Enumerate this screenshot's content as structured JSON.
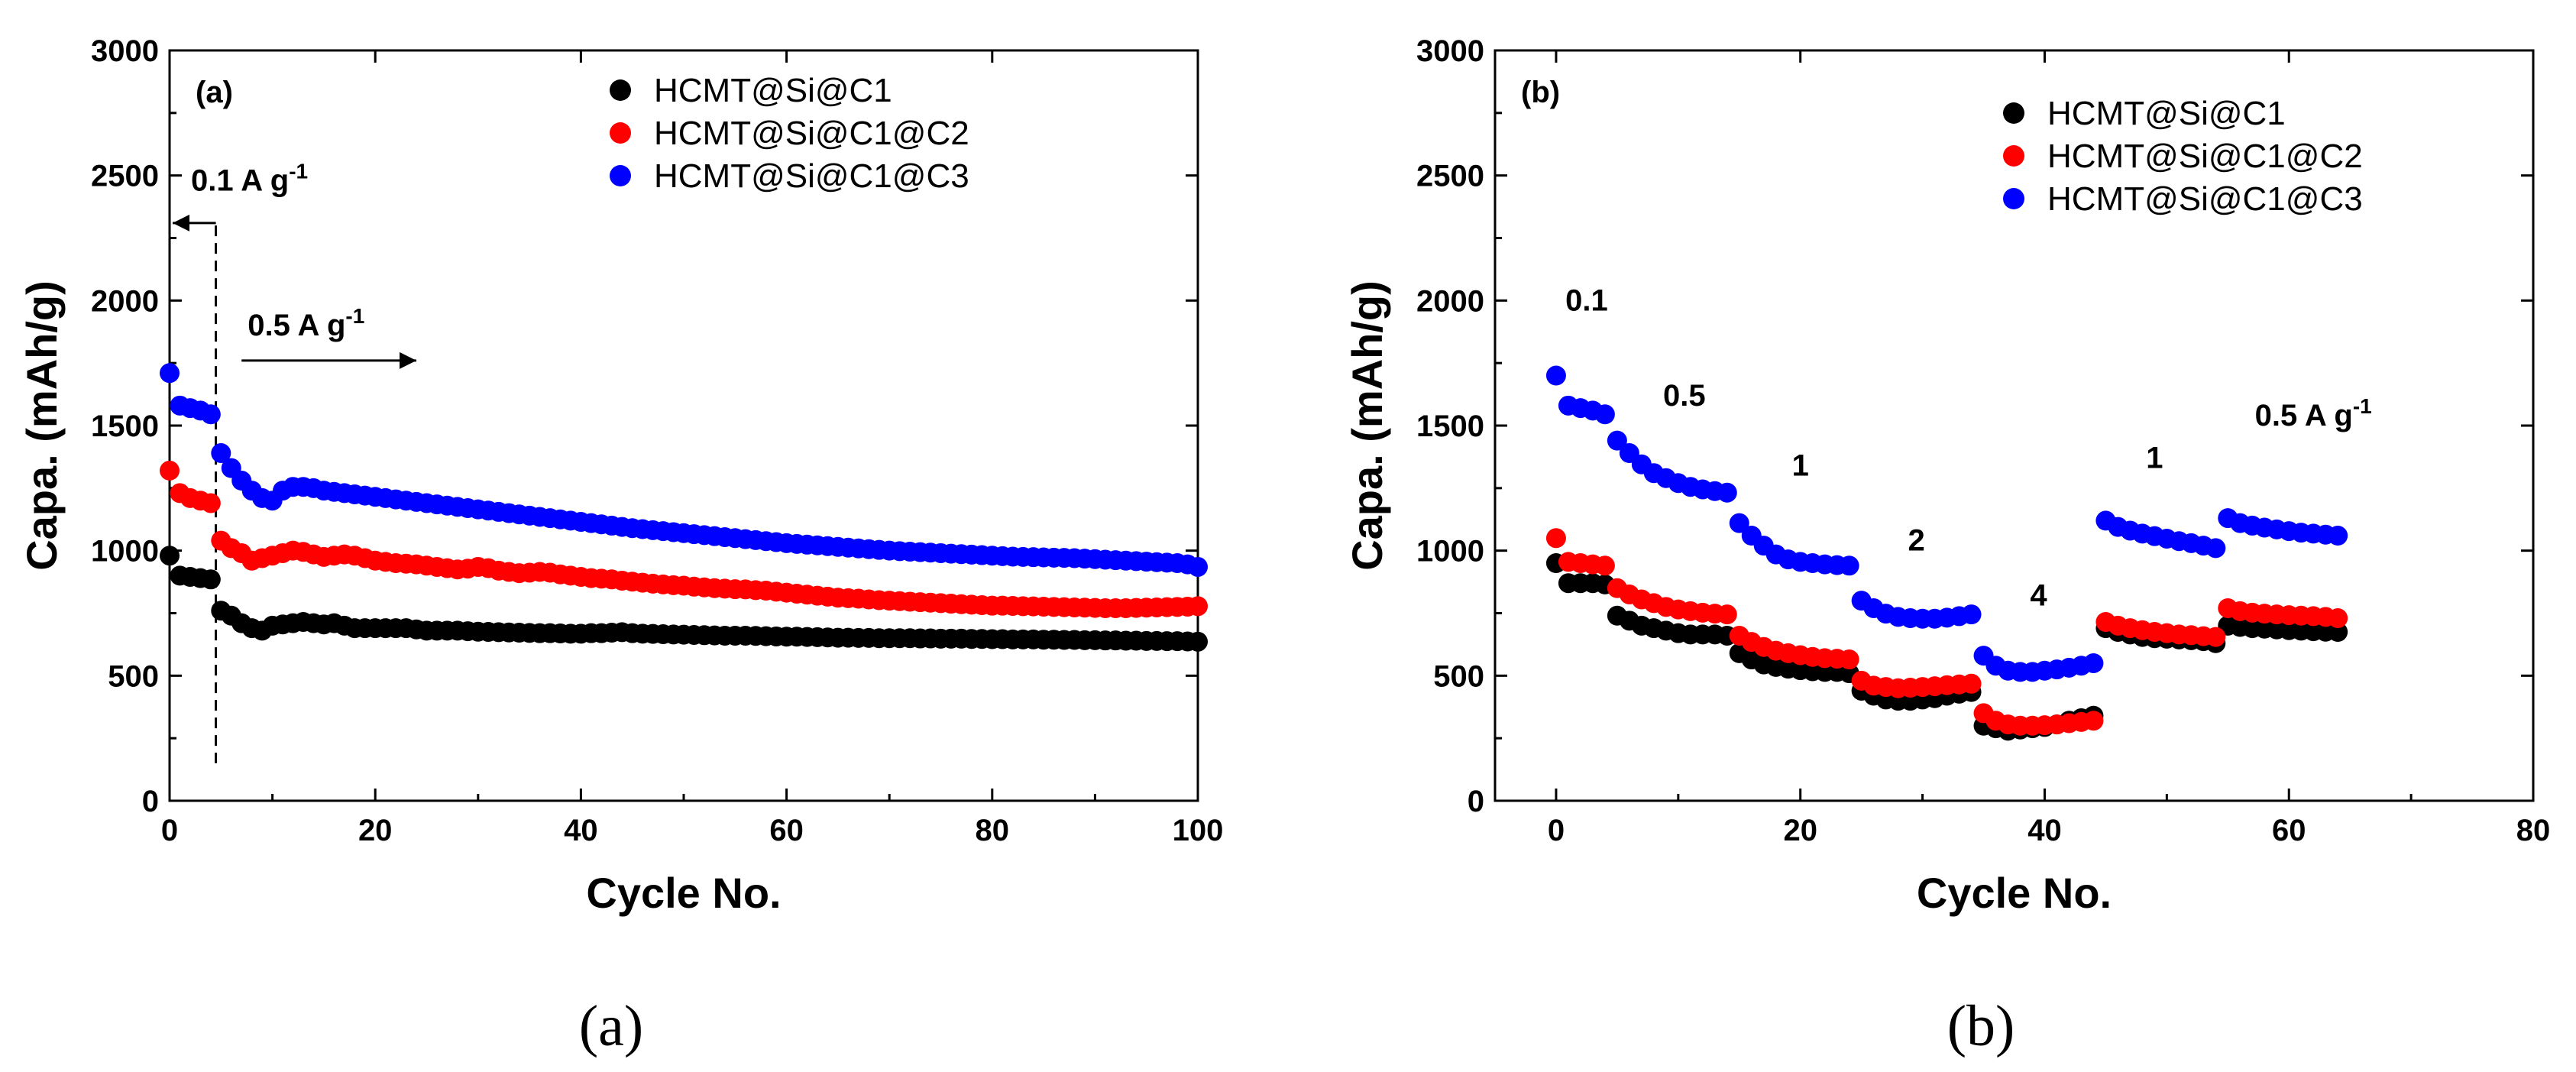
{
  "chart_data": [
    {
      "type": "scatter",
      "panel_label": "(a)",
      "caption": "(a)",
      "xlabel": "Cycle No.",
      "ylabel": "Capa. (mAh/g)",
      "xlim": [
        0,
        100
      ],
      "ylim": [
        0,
        3000
      ],
      "xticks": [
        0,
        20,
        40,
        60,
        80,
        100
      ],
      "yticks": [
        0,
        500,
        1000,
        1500,
        2000,
        2500,
        3000
      ],
      "grid": false,
      "legend_position": "top-right",
      "colors": [
        "#000000",
        "#ff0000",
        "#0000ff"
      ],
      "annotations": [
        {
          "text": "0.1 A g",
          "sup": "-1",
          "arrow": "left"
        },
        {
          "text": "0.5 A g",
          "sup": "-1",
          "arrow": "right"
        }
      ],
      "divider_x": 4.5,
      "series": [
        {
          "name": "HCMT@Si@C1",
          "x": [
            0,
            1,
            2,
            3,
            4,
            5,
            6,
            7,
            8,
            9,
            10,
            11,
            12,
            13,
            14,
            15,
            16,
            17,
            18,
            19,
            20,
            21,
            22,
            23,
            24,
            25,
            26,
            27,
            28,
            29,
            30,
            31,
            32,
            33,
            34,
            35,
            36,
            37,
            38,
            39,
            40,
            41,
            42,
            43,
            44,
            45,
            46,
            47,
            48,
            49,
            50,
            51,
            52,
            53,
            54,
            55,
            56,
            57,
            58,
            59,
            60,
            61,
            62,
            63,
            64,
            65,
            66,
            67,
            68,
            69,
            70,
            71,
            72,
            73,
            74,
            75,
            76,
            77,
            78,
            79,
            80,
            81,
            82,
            83,
            84,
            85,
            86,
            87,
            88,
            89,
            90,
            91,
            92,
            93,
            94,
            95,
            96,
            97,
            98,
            99,
            100
          ],
          "y": [
            980,
            900,
            895,
            890,
            885,
            760,
            740,
            710,
            690,
            680,
            700,
            705,
            710,
            715,
            710,
            705,
            710,
            700,
            690,
            690,
            690,
            690,
            690,
            690,
            685,
            680,
            680,
            680,
            680,
            678,
            676,
            675,
            674,
            673,
            672,
            671,
            670,
            670,
            669,
            668,
            668,
            670,
            670,
            672,
            674,
            670,
            668,
            667,
            666,
            665,
            664,
            663,
            662,
            661,
            660,
            660,
            660,
            659,
            658,
            657,
            656,
            656,
            655,
            654,
            653,
            652,
            652,
            651,
            651,
            650,
            650,
            650,
            650,
            649,
            649,
            648,
            648,
            648,
            647,
            647,
            646,
            646,
            645,
            645,
            645,
            644,
            644,
            643,
            643,
            642,
            642,
            641,
            641,
            640,
            640,
            639,
            639,
            638,
            638,
            637,
            636
          ]
        },
        {
          "name": "HCMT@Si@C1@C2",
          "x": [
            0,
            1,
            2,
            3,
            4,
            5,
            6,
            7,
            8,
            9,
            10,
            11,
            12,
            13,
            14,
            15,
            16,
            17,
            18,
            19,
            20,
            21,
            22,
            23,
            24,
            25,
            26,
            27,
            28,
            29,
            30,
            31,
            32,
            33,
            34,
            35,
            36,
            37,
            38,
            39,
            40,
            41,
            42,
            43,
            44,
            45,
            46,
            47,
            48,
            49,
            50,
            51,
            52,
            53,
            54,
            55,
            56,
            57,
            58,
            59,
            60,
            61,
            62,
            63,
            64,
            65,
            66,
            67,
            68,
            69,
            70,
            71,
            72,
            73,
            74,
            75,
            76,
            77,
            78,
            79,
            80,
            81,
            82,
            83,
            84,
            85,
            86,
            87,
            88,
            89,
            90,
            91,
            92,
            93,
            94,
            95,
            96,
            97,
            98,
            99,
            100
          ],
          "y": [
            1320,
            1230,
            1210,
            1200,
            1190,
            1040,
            1010,
            990,
            960,
            970,
            980,
            990,
            1000,
            995,
            985,
            975,
            980,
            985,
            980,
            970,
            960,
            955,
            950,
            948,
            945,
            940,
            935,
            930,
            925,
            928,
            935,
            930,
            920,
            915,
            910,
            912,
            915,
            912,
            905,
            900,
            895,
            890,
            888,
            885,
            880,
            876,
            872,
            868,
            865,
            862,
            860,
            856,
            853,
            850,
            848,
            846,
            845,
            842,
            840,
            836,
            832,
            828,
            824,
            820,
            816,
            812,
            810,
            808,
            805,
            802,
            800,
            798,
            796,
            794,
            792,
            790,
            788,
            786,
            784,
            782,
            780,
            780,
            779,
            778,
            777,
            776,
            775,
            774,
            773,
            772,
            771,
            770,
            770,
            770,
            771,
            772,
            773,
            774,
            775,
            776,
            778
          ]
        },
        {
          "name": "HCMT@Si@C1@C3",
          "x": [
            0,
            1,
            2,
            3,
            4,
            5,
            6,
            7,
            8,
            9,
            10,
            11,
            12,
            13,
            14,
            15,
            16,
            17,
            18,
            19,
            20,
            21,
            22,
            23,
            24,
            25,
            26,
            27,
            28,
            29,
            30,
            31,
            32,
            33,
            34,
            35,
            36,
            37,
            38,
            39,
            40,
            41,
            42,
            43,
            44,
            45,
            46,
            47,
            48,
            49,
            50,
            51,
            52,
            53,
            54,
            55,
            56,
            57,
            58,
            59,
            60,
            61,
            62,
            63,
            64,
            65,
            66,
            67,
            68,
            69,
            70,
            71,
            72,
            73,
            74,
            75,
            76,
            77,
            78,
            79,
            80,
            81,
            82,
            83,
            84,
            85,
            86,
            87,
            88,
            89,
            90,
            91,
            92,
            93,
            94,
            95,
            96,
            97,
            98,
            99,
            100
          ],
          "y": [
            1710,
            1580,
            1570,
            1560,
            1545,
            1390,
            1330,
            1280,
            1240,
            1210,
            1200,
            1240,
            1255,
            1255,
            1250,
            1240,
            1235,
            1230,
            1225,
            1220,
            1215,
            1210,
            1205,
            1200,
            1195,
            1190,
            1185,
            1180,
            1175,
            1170,
            1165,
            1160,
            1155,
            1150,
            1145,
            1140,
            1135,
            1130,
            1125,
            1120,
            1115,
            1110,
            1105,
            1100,
            1095,
            1090,
            1086,
            1082,
            1078,
            1074,
            1070,
            1066,
            1062,
            1058,
            1054,
            1050,
            1046,
            1042,
            1038,
            1034,
            1030,
            1027,
            1024,
            1021,
            1018,
            1015,
            1012,
            1009,
            1006,
            1003,
            1000,
            998,
            996,
            994,
            992,
            990,
            988,
            986,
            984,
            982,
            980,
            978,
            976,
            975,
            974,
            973,
            972,
            971,
            970,
            968,
            966,
            964,
            962,
            960,
            958,
            956,
            954,
            952,
            950,
            945,
            935
          ]
        }
      ]
    },
    {
      "type": "scatter",
      "panel_label": "(b)",
      "caption": "(b)",
      "xlabel": "Cycle No.",
      "ylabel": "Capa. (mAh/g)",
      "xlim": [
        -5,
        80
      ],
      "ylim": [
        0,
        3000
      ],
      "xticks": [
        0,
        20,
        40,
        60,
        80
      ],
      "yticks": [
        0,
        500,
        1000,
        1500,
        2000,
        2500,
        3000
      ],
      "grid": false,
      "legend_position": "top-right",
      "colors": [
        "#000000",
        "#ff0000",
        "#0000ff"
      ],
      "rate_labels": [
        {
          "text": "0.1",
          "x": 2.5,
          "y": 1960
        },
        {
          "text": "0.5",
          "x": 10.5,
          "y": 1580
        },
        {
          "text": "1",
          "x": 20,
          "y": 1300
        },
        {
          "text": "2",
          "x": 29.5,
          "y": 1000
        },
        {
          "text": "4",
          "x": 39.5,
          "y": 780
        },
        {
          "text": "1",
          "x": 49,
          "y": 1330
        },
        {
          "text": "0.5 A g",
          "sup": "-1",
          "x": 62,
          "y": 1500
        }
      ],
      "series": [
        {
          "name": "HCMT@Si@C1",
          "x": [
            0,
            1,
            2,
            3,
            4,
            5,
            6,
            7,
            8,
            9,
            10,
            11,
            12,
            13,
            14,
            15,
            16,
            17,
            18,
            19,
            20,
            21,
            22,
            23,
            24,
            25,
            26,
            27,
            28,
            29,
            30,
            31,
            32,
            33,
            34,
            35,
            36,
            37,
            38,
            39,
            40,
            41,
            42,
            43,
            44,
            45,
            46,
            47,
            48,
            49,
            50,
            51,
            52,
            53,
            54,
            55,
            56,
            57,
            58,
            59,
            60,
            61,
            62,
            63,
            64
          ],
          "y": [
            950,
            870,
            870,
            870,
            865,
            740,
            720,
            700,
            690,
            680,
            670,
            665,
            665,
            665,
            660,
            590,
            565,
            545,
            535,
            528,
            522,
            518,
            515,
            515,
            510,
            440,
            420,
            405,
            400,
            400,
            405,
            410,
            420,
            428,
            435,
            300,
            290,
            280,
            285,
            290,
            295,
            305,
            320,
            330,
            340,
            690,
            675,
            665,
            655,
            650,
            648,
            645,
            642,
            638,
            630,
            700,
            695,
            690,
            688,
            685,
            682,
            680,
            678,
            676,
            675
          ]
        },
        {
          "name": "HCMT@Si@C1@C2",
          "x": [
            0,
            1,
            2,
            3,
            4,
            5,
            6,
            7,
            8,
            9,
            10,
            11,
            12,
            13,
            14,
            15,
            16,
            17,
            18,
            19,
            20,
            21,
            22,
            23,
            24,
            25,
            26,
            27,
            28,
            29,
            30,
            31,
            32,
            33,
            34,
            35,
            36,
            37,
            38,
            39,
            40,
            41,
            42,
            43,
            44,
            45,
            46,
            47,
            48,
            49,
            50,
            51,
            52,
            53,
            54,
            55,
            56,
            57,
            58,
            59,
            60,
            61,
            62,
            63,
            64
          ],
          "y": [
            1050,
            955,
            950,
            945,
            940,
            850,
            825,
            805,
            790,
            775,
            765,
            758,
            752,
            748,
            745,
            660,
            635,
            615,
            600,
            590,
            582,
            575,
            570,
            568,
            565,
            480,
            460,
            455,
            450,
            452,
            455,
            458,
            462,
            465,
            468,
            350,
            320,
            305,
            300,
            300,
            302,
            305,
            310,
            315,
            320,
            715,
            700,
            690,
            682,
            675,
            670,
            665,
            662,
            658,
            655,
            770,
            758,
            752,
            748,
            745,
            742,
            740,
            738,
            735,
            730
          ]
        },
        {
          "name": "HCMT@Si@C1@C3",
          "x": [
            0,
            1,
            2,
            3,
            4,
            5,
            6,
            7,
            8,
            9,
            10,
            11,
            12,
            13,
            14,
            15,
            16,
            17,
            18,
            19,
            20,
            21,
            22,
            23,
            24,
            25,
            26,
            27,
            28,
            29,
            30,
            31,
            32,
            33,
            34,
            35,
            36,
            37,
            38,
            39,
            40,
            41,
            42,
            43,
            44,
            45,
            46,
            47,
            48,
            49,
            50,
            51,
            52,
            53,
            54,
            55,
            56,
            57,
            58,
            59,
            60,
            61,
            62,
            63,
            64
          ],
          "y": [
            1700,
            1580,
            1570,
            1560,
            1545,
            1440,
            1390,
            1345,
            1310,
            1290,
            1270,
            1255,
            1245,
            1238,
            1232,
            1110,
            1060,
            1020,
            985,
            965,
            955,
            950,
            945,
            942,
            940,
            800,
            770,
            748,
            735,
            730,
            728,
            728,
            732,
            738,
            745,
            580,
            540,
            520,
            515,
            515,
            520,
            525,
            532,
            540,
            550,
            1120,
            1095,
            1080,
            1068,
            1058,
            1048,
            1038,
            1030,
            1020,
            1010,
            1130,
            1110,
            1100,
            1092,
            1085,
            1078,
            1072,
            1068,
            1064,
            1060
          ]
        }
      ]
    }
  ]
}
